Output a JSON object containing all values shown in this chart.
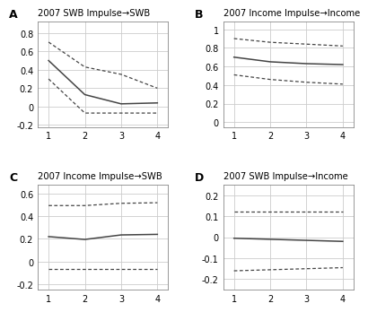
{
  "panels": [
    {
      "label": "A",
      "title": "2007 SWB Impulse→SWB",
      "x": [
        1,
        2,
        3,
        4
      ],
      "mean": [
        0.5,
        0.13,
        0.03,
        0.04
      ],
      "upper": [
        0.7,
        0.43,
        0.35,
        0.2
      ],
      "lower": [
        0.3,
        -0.07,
        -0.07,
        -0.07
      ],
      "ylim": [
        -0.22,
        0.92
      ],
      "yticks": [
        -0.2,
        0,
        0.2,
        0.4,
        0.6,
        0.8
      ]
    },
    {
      "label": "B",
      "title": "2007 Income Impulse→Income",
      "x": [
        1,
        2,
        3,
        4
      ],
      "mean": [
        0.7,
        0.65,
        0.63,
        0.62
      ],
      "upper": [
        0.9,
        0.86,
        0.84,
        0.82
      ],
      "lower": [
        0.51,
        0.46,
        0.43,
        0.41
      ],
      "ylim": [
        -0.05,
        1.08
      ],
      "yticks": [
        0,
        0.2,
        0.4,
        0.6,
        0.8,
        1.0
      ]
    },
    {
      "label": "C",
      "title": "2007 Income Impulse→SWB",
      "x": [
        1,
        2,
        3,
        4
      ],
      "mean": [
        0.22,
        0.195,
        0.235,
        0.24
      ],
      "upper": [
        0.495,
        0.495,
        0.515,
        0.52
      ],
      "lower": [
        -0.065,
        -0.065,
        -0.065,
        -0.065
      ],
      "ylim": [
        -0.25,
        0.68
      ],
      "yticks": [
        -0.2,
        0,
        0.2,
        0.4,
        0.6
      ]
    },
    {
      "label": "D",
      "title": "2007 SWB Impulse→Income",
      "x": [
        1,
        2,
        3,
        4
      ],
      "mean": [
        -0.005,
        -0.01,
        -0.015,
        -0.02
      ],
      "upper": [
        0.12,
        0.12,
        0.12,
        0.12
      ],
      "lower": [
        -0.16,
        -0.155,
        -0.15,
        -0.145
      ],
      "ylim": [
        -0.25,
        0.25
      ],
      "yticks": [
        -0.2,
        -0.1,
        0,
        0.1,
        0.2
      ]
    }
  ],
  "line_color": "#444444",
  "dashed_color": "#444444",
  "bg_color": "#ffffff",
  "grid_color": "#cccccc"
}
